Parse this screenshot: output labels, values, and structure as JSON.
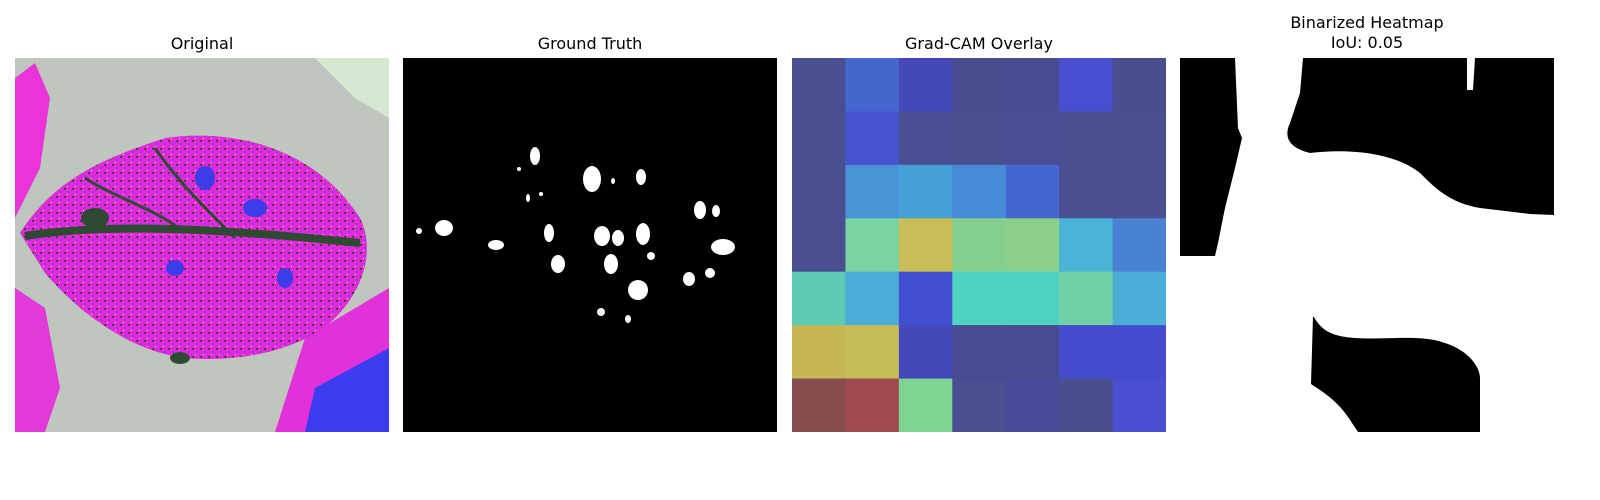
{
  "panels": {
    "original": {
      "title": "Original"
    },
    "ground_truth": {
      "title": "Ground Truth"
    },
    "gradcam": {
      "title": "Grad-CAM Overlay",
      "grid": [
        [
          "#4a4f92",
          "#4666cf",
          "#4448bb",
          "#494d90",
          "#484b92",
          "#474fd0",
          "#4a4e90"
        ],
        [
          "#4a4f92",
          "#4654cf",
          "#4a4e92",
          "#4a4f92",
          "#4a4e92",
          "#4a4f92",
          "#4a4f92"
        ],
        [
          "#4a4f92",
          "#4893d5",
          "#48a0d8",
          "#478ad5",
          "#4565d2",
          "#4a4f92",
          "#4a4f92"
        ],
        [
          "#4a4f92",
          "#79d3a3",
          "#c9bd58",
          "#84cf8e",
          "#8ad08a",
          "#4bb4d6",
          "#4a82d3"
        ],
        [
          "#5ccbb1",
          "#4aaed7",
          "#444ed0",
          "#50d1c2",
          "#50d1c2",
          "#70d1a9",
          "#4aaed7"
        ],
        [
          "#c7b656",
          "#c7bd58",
          "#4448bb",
          "#484b92",
          "#484b92",
          "#444bcd",
          "#444bcd"
        ],
        [
          "#864d4f",
          "#a04a50",
          "#7ed492",
          "#4a4f92",
          "#484b9a",
          "#4b4e8c",
          "#4a4ed0"
        ]
      ]
    },
    "binarized": {
      "title": "Binarized Heatmap",
      "subtitle": "IoU: 0.05"
    }
  }
}
